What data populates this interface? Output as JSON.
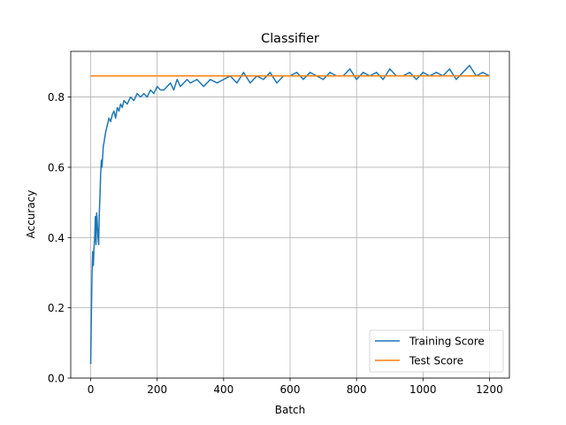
{
  "chart_data": {
    "type": "line",
    "title": "Classifier",
    "xlabel": "Batch",
    "ylabel": "Accuracy",
    "xlim": [
      -60,
      1260
    ],
    "ylim": [
      0.0,
      0.93
    ],
    "x_ticks": [
      0,
      200,
      400,
      600,
      800,
      1000,
      1200
    ],
    "y_ticks": [
      0.0,
      0.2,
      0.4,
      0.6,
      0.8
    ],
    "y_tick_labels": [
      "0.0",
      "0.2",
      "0.4",
      "0.6",
      "0.8"
    ],
    "grid": true,
    "legend_position": "lower-right",
    "series": [
      {
        "name": "Training Score",
        "color": "#1f77b4",
        "x": [
          0,
          2,
          4,
          6,
          8,
          10,
          12,
          14,
          16,
          18,
          20,
          22,
          24,
          26,
          28,
          30,
          32,
          34,
          36,
          38,
          40,
          45,
          50,
          55,
          60,
          65,
          70,
          75,
          80,
          85,
          90,
          95,
          100,
          110,
          120,
          130,
          140,
          150,
          160,
          170,
          180,
          190,
          200,
          210,
          220,
          230,
          240,
          250,
          260,
          270,
          280,
          290,
          300,
          320,
          340,
          360,
          380,
          400,
          420,
          440,
          460,
          480,
          500,
          520,
          540,
          560,
          580,
          600,
          620,
          640,
          660,
          680,
          700,
          720,
          740,
          760,
          780,
          800,
          820,
          840,
          860,
          880,
          900,
          920,
          940,
          960,
          980,
          1000,
          1020,
          1040,
          1060,
          1080,
          1100,
          1120,
          1140,
          1160,
          1180,
          1200
        ],
        "y": [
          0.04,
          0.18,
          0.3,
          0.36,
          0.32,
          0.37,
          0.4,
          0.46,
          0.38,
          0.47,
          0.44,
          0.4,
          0.38,
          0.47,
          0.52,
          0.58,
          0.62,
          0.6,
          0.63,
          0.66,
          0.67,
          0.7,
          0.72,
          0.74,
          0.73,
          0.75,
          0.76,
          0.74,
          0.77,
          0.76,
          0.78,
          0.77,
          0.79,
          0.78,
          0.8,
          0.79,
          0.81,
          0.8,
          0.81,
          0.8,
          0.82,
          0.81,
          0.83,
          0.82,
          0.82,
          0.83,
          0.84,
          0.82,
          0.85,
          0.83,
          0.84,
          0.85,
          0.84,
          0.85,
          0.83,
          0.85,
          0.84,
          0.85,
          0.86,
          0.84,
          0.87,
          0.84,
          0.86,
          0.85,
          0.87,
          0.84,
          0.86,
          0.86,
          0.87,
          0.85,
          0.87,
          0.86,
          0.85,
          0.87,
          0.86,
          0.86,
          0.88,
          0.85,
          0.87,
          0.86,
          0.87,
          0.85,
          0.88,
          0.86,
          0.86,
          0.87,
          0.85,
          0.87,
          0.86,
          0.87,
          0.86,
          0.88,
          0.85,
          0.87,
          0.89,
          0.86,
          0.87,
          0.86
        ]
      },
      {
        "name": "Test Score",
        "color": "#ff7f0e",
        "x": [
          0,
          1200
        ],
        "y": [
          0.86,
          0.86
        ]
      }
    ]
  }
}
